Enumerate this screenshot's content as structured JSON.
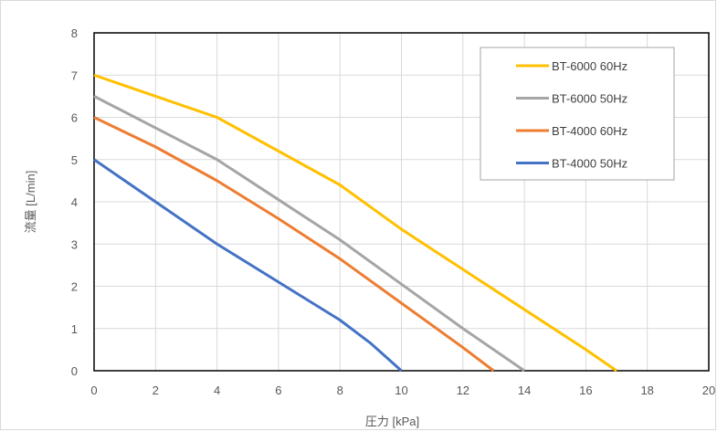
{
  "chart_data": {
    "type": "line",
    "title": "",
    "xlabel": "圧力 [kPa]",
    "ylabel": "流量 [L/min]",
    "xlim": [
      0,
      20
    ],
    "ylim": [
      0,
      8
    ],
    "xticks": [
      0,
      2,
      4,
      6,
      8,
      10,
      12,
      14,
      16,
      18,
      20
    ],
    "yticks": [
      0,
      1,
      2,
      3,
      4,
      5,
      6,
      7,
      8
    ],
    "grid": true,
    "legend_position": "top-right",
    "series": [
      {
        "name": "BT-6000 60Hz",
        "color": "#ffc000",
        "x": [
          0,
          4,
          8,
          10,
          12,
          14,
          16,
          17
        ],
        "y": [
          7,
          6,
          4.4,
          3.35,
          2.4,
          1.45,
          0.5,
          0
        ]
      },
      {
        "name": "BT-6000 50Hz",
        "color": "#a5a5a5",
        "x": [
          0,
          2,
          4,
          6,
          8,
          10,
          12,
          14
        ],
        "y": [
          6.5,
          5.75,
          5,
          4.05,
          3.1,
          2.05,
          1.0,
          0
        ]
      },
      {
        "name": "BT-4000 60Hz",
        "color": "#ed7d31",
        "x": [
          0,
          2,
          4,
          6,
          8,
          10,
          12,
          13
        ],
        "y": [
          6,
          5.3,
          4.5,
          3.6,
          2.65,
          1.6,
          0.55,
          0
        ]
      },
      {
        "name": "BT-4000 50Hz",
        "color": "#4472c4",
        "x": [
          0,
          2,
          4,
          6,
          8,
          9,
          10
        ],
        "y": [
          5,
          4,
          3,
          2.1,
          1.2,
          0.65,
          0
        ]
      }
    ]
  }
}
